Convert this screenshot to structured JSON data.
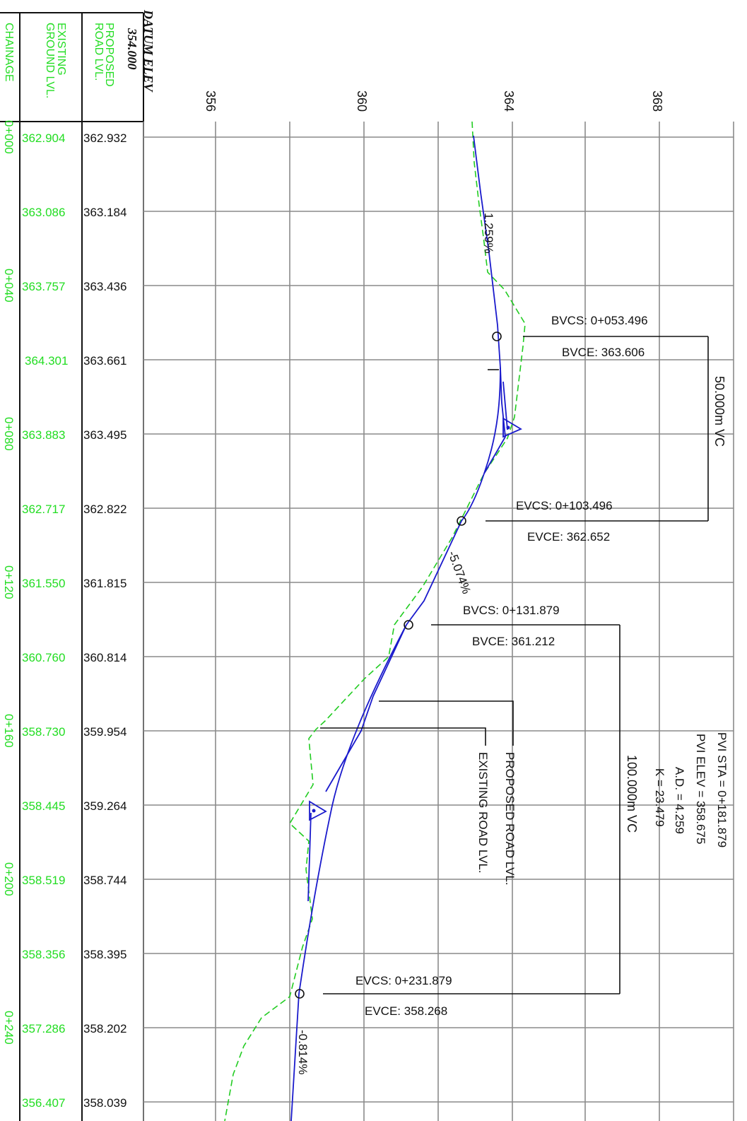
{
  "header": {
    "chainage_label": "CHAINAGE",
    "existing_label_1": "EXISTING",
    "existing_label_2": "GROUND LVL.",
    "proposed_label_1": "PROPOSED",
    "proposed_label_2": "ROAD LVL.",
    "datum_label": "DATUM ELEV",
    "datum_value": "354.000"
  },
  "elevation_ticks": [
    "356",
    "360",
    "364",
    "368"
  ],
  "rows": [
    {
      "chainage": "0+000",
      "existing": "362.904",
      "proposed": "362.932"
    },
    {
      "chainage": "",
      "existing": "363.086",
      "proposed": "363.184"
    },
    {
      "chainage": "0+040",
      "existing": "363.757",
      "proposed": "363.436"
    },
    {
      "chainage": "",
      "existing": "364.301",
      "proposed": "363.661"
    },
    {
      "chainage": "0+080",
      "existing": "363.883",
      "proposed": "363.495"
    },
    {
      "chainage": "",
      "existing": "362.717",
      "proposed": "362.822"
    },
    {
      "chainage": "0+120",
      "existing": "361.550",
      "proposed": "361.815"
    },
    {
      "chainage": "",
      "existing": "360.760",
      "proposed": "360.814"
    },
    {
      "chainage": "0+160",
      "existing": "358.730",
      "proposed": "359.954"
    },
    {
      "chainage": "",
      "existing": "358.445",
      "proposed": "359.264"
    },
    {
      "chainage": "0+200",
      "existing": "358.519",
      "proposed": "358.744"
    },
    {
      "chainage": "",
      "existing": "358.356",
      "proposed": "358.395"
    },
    {
      "chainage": "0+240",
      "existing": "357.286",
      "proposed": "358.202"
    },
    {
      "chainage": "",
      "existing": "356.407",
      "proposed": "358.039"
    }
  ],
  "grades": {
    "g1": "1.259%",
    "g2": "-5.074%",
    "g3": "-0.814%"
  },
  "curve1": {
    "bvcs": "BVCS:  0+053.496",
    "bvce": "BVCE:  363.606",
    "evcs": "EVCS:  0+103.496",
    "evce": "EVCE:  362.652",
    "length": "50.000m  VC"
  },
  "curve2": {
    "bvcs": "BVCS:  0+131.879",
    "bvce": "BVCE:  361.212",
    "evcs": "EVCS:  0+231.879",
    "evce": "EVCE:  358.268",
    "length": "100.000m  VC",
    "pvi_sta": "PVI  STA  =  0+181.879",
    "pvi_elev": "PVI  ELEV  =  358.675",
    "ad": "A.D.  =  4.259",
    "k": "K  =  23.479"
  },
  "legend": {
    "proposed": "PROPOSED  ROAD  LVL.",
    "existing": "EXISTING  ROAD  LVL."
  },
  "colors": {
    "existing_line": "#22cc22",
    "proposed_line": "#1a1acc",
    "grid": "#8a8a8a",
    "green_text": "#22dd22",
    "ink": "#111111"
  }
}
